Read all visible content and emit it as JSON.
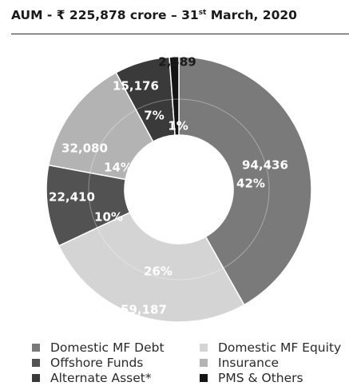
{
  "header": {
    "title_prefix": "AUM - ₹ 225,878 crore – 31",
    "title_sup": "st",
    "title_suffix": " March, 2020"
  },
  "chart_data": {
    "type": "pie",
    "donut": true,
    "categories": [
      "Domestic MF Debt",
      "Domestic MF Equity",
      "Offshore Funds",
      "Insurance",
      "Alternate Asset*",
      "PMS & Others"
    ],
    "values": [
      94436,
      59187,
      22410,
      32080,
      15176,
      2589
    ],
    "value_labels": [
      "94,436",
      "59,187",
      "22,410",
      "32,080",
      "15,176",
      "2,589"
    ],
    "percent_labels": [
      "42%",
      "26%",
      "10%",
      "14%",
      "7%",
      "1%"
    ],
    "colors": [
      "#7a7a7a",
      "#d4d4d4",
      "#525252",
      "#b3b3b3",
      "#3a3a3a",
      "#141414"
    ],
    "draw_order": [
      0,
      1,
      2,
      3,
      4,
      5
    ],
    "legend_placement": "bottom",
    "title": "AUM - ₹ 225,878 crore – 31st March, 2020"
  },
  "legend": [
    {
      "label": "Domestic MF Debt",
      "color": "#7a7a7a"
    },
    {
      "label": "Domestic MF Equity",
      "color": "#d4d4d4"
    },
    {
      "label": "Offshore Funds",
      "color": "#525252"
    },
    {
      "label": "Insurance",
      "color": "#b3b3b3"
    },
    {
      "label": "Alternate Asset*",
      "color": "#3a3a3a"
    },
    {
      "label": "PMS & Others",
      "color": "#141414"
    }
  ]
}
